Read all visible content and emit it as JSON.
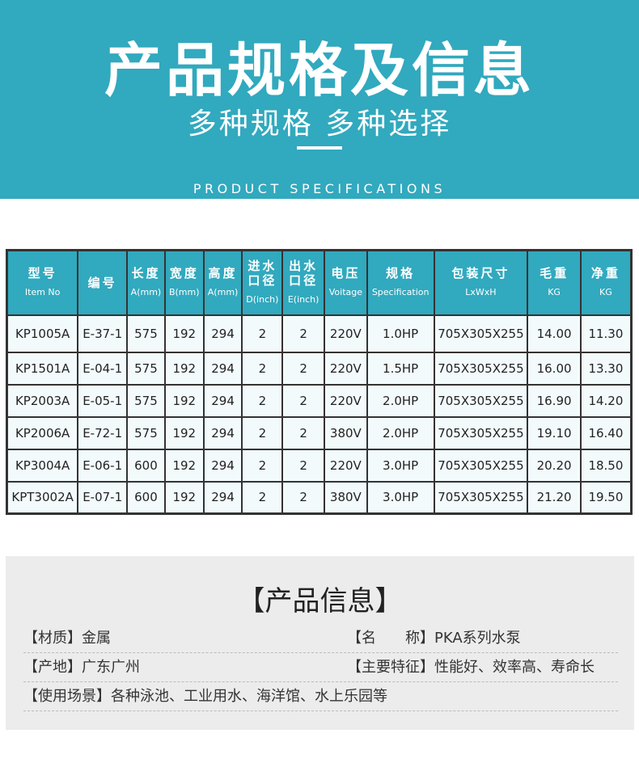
{
  "header": {
    "title": "产品规格及信息",
    "subtitle": "多种规格  多种选择",
    "english": "PRODUCT SPECIFICATIONS"
  },
  "table": {
    "columns": [
      {
        "cn": "型号",
        "en": "Item No"
      },
      {
        "cn": "编号",
        "en": ""
      },
      {
        "cn": "长度",
        "en": "A(mm)"
      },
      {
        "cn": "宽度",
        "en": "B(mm)"
      },
      {
        "cn": "高度",
        "en": "A(mm)"
      },
      {
        "cn": "进水口径",
        "en": "D(inch)"
      },
      {
        "cn": "出水口径",
        "en": "E(inch)"
      },
      {
        "cn": "电压",
        "en": "Voitage"
      },
      {
        "cn": "规格",
        "en": "Specification"
      },
      {
        "cn": "包装尺寸",
        "en": "LxWxH"
      },
      {
        "cn": "毛重",
        "en": "KG"
      },
      {
        "cn": "净重",
        "en": "KG"
      }
    ],
    "rows": [
      [
        "KP1005A",
        "E-37-1",
        "575",
        "192",
        "294",
        "2",
        "2",
        "220V",
        "1.0HP",
        "705X305X255",
        "14.00",
        "11.30"
      ],
      [
        "KP1501A",
        "E-04-1",
        "575",
        "192",
        "294",
        "2",
        "2",
        "220V",
        "1.5HP",
        "705X305X255",
        "16.00",
        "13.30"
      ],
      [
        "KP2003A",
        "E-05-1",
        "575",
        "192",
        "294",
        "2",
        "2",
        "220V",
        "2.0HP",
        "705X305X255",
        "16.90",
        "14.20"
      ],
      [
        "KP2006A",
        "E-72-1",
        "575",
        "192",
        "294",
        "2",
        "2",
        "380V",
        "2.0HP",
        "705X305X255",
        "19.10",
        "16.40"
      ],
      [
        "KP3004A",
        "E-06-1",
        "600",
        "192",
        "294",
        "2",
        "2",
        "220V",
        "3.0HP",
        "705X305X255",
        "20.20",
        "18.50"
      ],
      [
        "KPT3002A",
        "E-07-1",
        "600",
        "192",
        "294",
        "2",
        "2",
        "380V",
        "3.0HP",
        "705X305X255",
        "21.20",
        "19.50"
      ]
    ]
  },
  "info": {
    "title": "【产品信息】",
    "material": "【材质】金属",
    "name": "【名　　称】PKA系列水泵",
    "origin": "【产地】广东广州",
    "features": "【主要特征】性能好、效率高、寿命长",
    "usage": "【使用场景】各种泳池、工业用水、海洋馆、水上乐园等"
  }
}
